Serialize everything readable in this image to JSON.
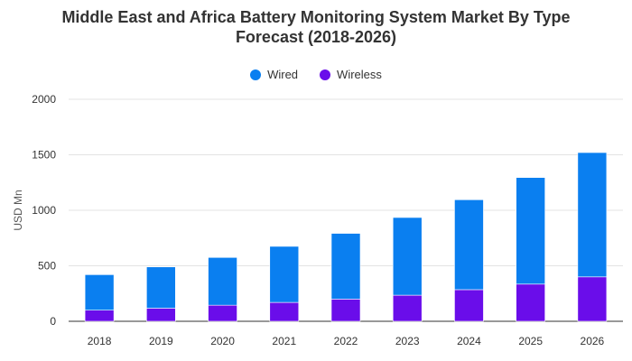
{
  "chart_data": {
    "type": "bar",
    "stacked": true,
    "title_line1": "Middle East and Africa Battery Monitoring System Market By Type",
    "title_line2": "Forecast (2018-2026)",
    "ylabel": "USD Mn",
    "xlabel": "",
    "ylim": [
      0,
      2000
    ],
    "yticks": [
      0,
      500,
      1000,
      1500,
      2000
    ],
    "categories": [
      "2018",
      "2019",
      "2020",
      "2021",
      "2022",
      "2023",
      "2024",
      "2025",
      "2026"
    ],
    "series": [
      {
        "name": "Wireless",
        "color": "#6a0dea",
        "values": [
          100,
          118,
          145,
          170,
          200,
          235,
          285,
          335,
          400
        ]
      },
      {
        "name": "Wired",
        "color": "#0a7ff0",
        "values": [
          320,
          372,
          430,
          505,
          592,
          700,
          810,
          960,
          1120
        ]
      }
    ],
    "legend": [
      {
        "name": "Wired",
        "color": "#0a7ff0"
      },
      {
        "name": "Wireless",
        "color": "#6a0dea"
      }
    ],
    "legend_position": "top-center",
    "grid": true
  }
}
